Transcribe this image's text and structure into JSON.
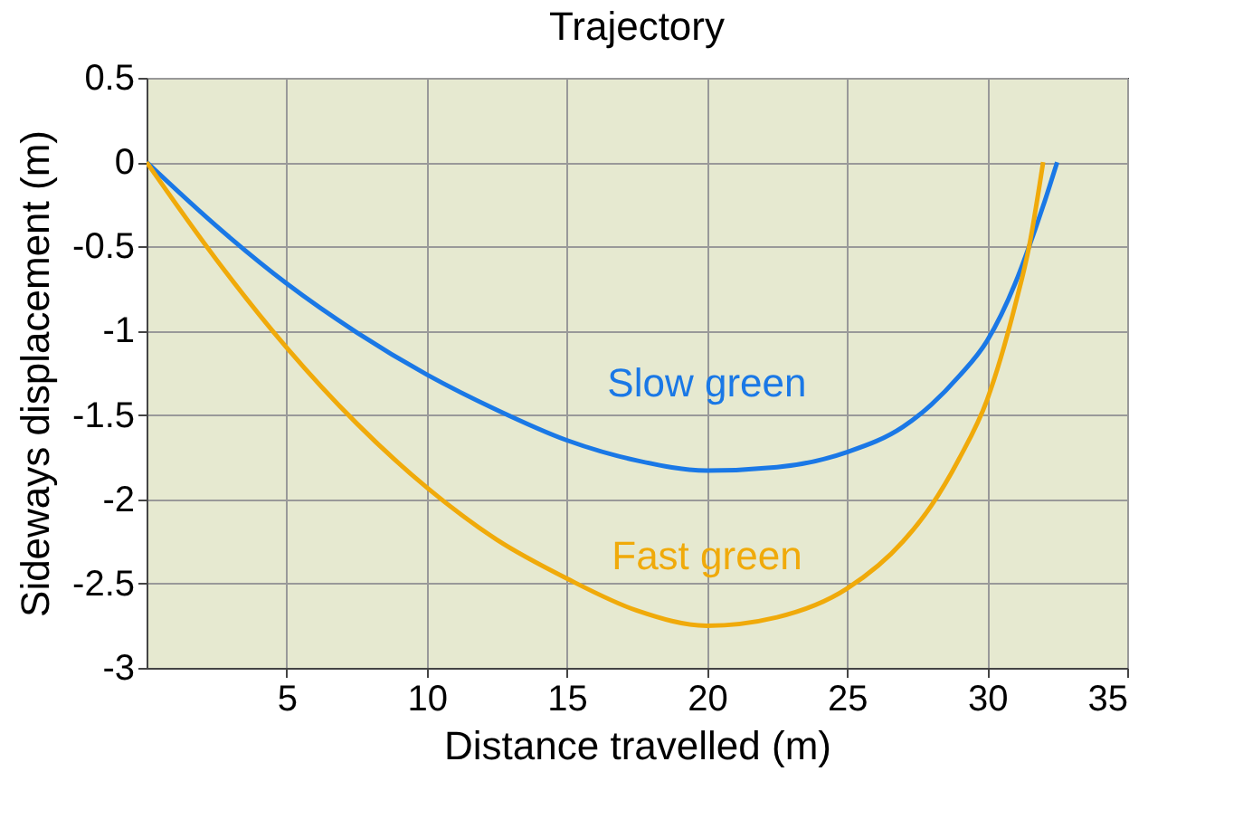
{
  "chart_data": {
    "type": "line",
    "title": "Trajectory",
    "xlabel": "Distance travelled (m)",
    "ylabel": "Sideways displacement (m)",
    "xlim": [
      0,
      35
    ],
    "xticks": [
      5,
      10,
      15,
      20,
      25,
      30,
      35
    ],
    "ylim": [
      -3,
      0.5
    ],
    "yticks": [
      -3,
      -2.5,
      -2,
      -1.5,
      -1,
      -0.5,
      0,
      0.5
    ],
    "grid": true,
    "legend": false,
    "marker": "none",
    "line_style": "solid",
    "series": [
      {
        "name": "Slow green",
        "color": "#1a78e6",
        "x": [
          0,
          2.5,
          5,
          7.5,
          10,
          12.5,
          15,
          17.5,
          20,
          22.5,
          25,
          27,
          28,
          29,
          30,
          31,
          31.5,
          32,
          32.5
        ],
        "values": [
          0,
          -0.38,
          -0.72,
          -1.01,
          -1.26,
          -1.47,
          -1.65,
          -1.77,
          -1.83,
          -1.81,
          -1.72,
          -1.57,
          -1.44,
          -1.27,
          -1.06,
          -0.72,
          -0.5,
          -0.26,
          0
        ]
      },
      {
        "name": "Fast green",
        "color": "#f0aa0a",
        "x": [
          0,
          2.5,
          5,
          7.5,
          10,
          12.5,
          15,
          17.5,
          20,
          22.5,
          25,
          27,
          28,
          29,
          30,
          31,
          31.5,
          32
        ],
        "values": [
          0,
          -0.58,
          -1.1,
          -1.55,
          -1.93,
          -2.24,
          -2.47,
          -2.66,
          -2.75,
          -2.7,
          -2.53,
          -2.25,
          -2.04,
          -1.76,
          -1.41,
          -0.85,
          -0.5,
          0
        ]
      }
    ]
  }
}
